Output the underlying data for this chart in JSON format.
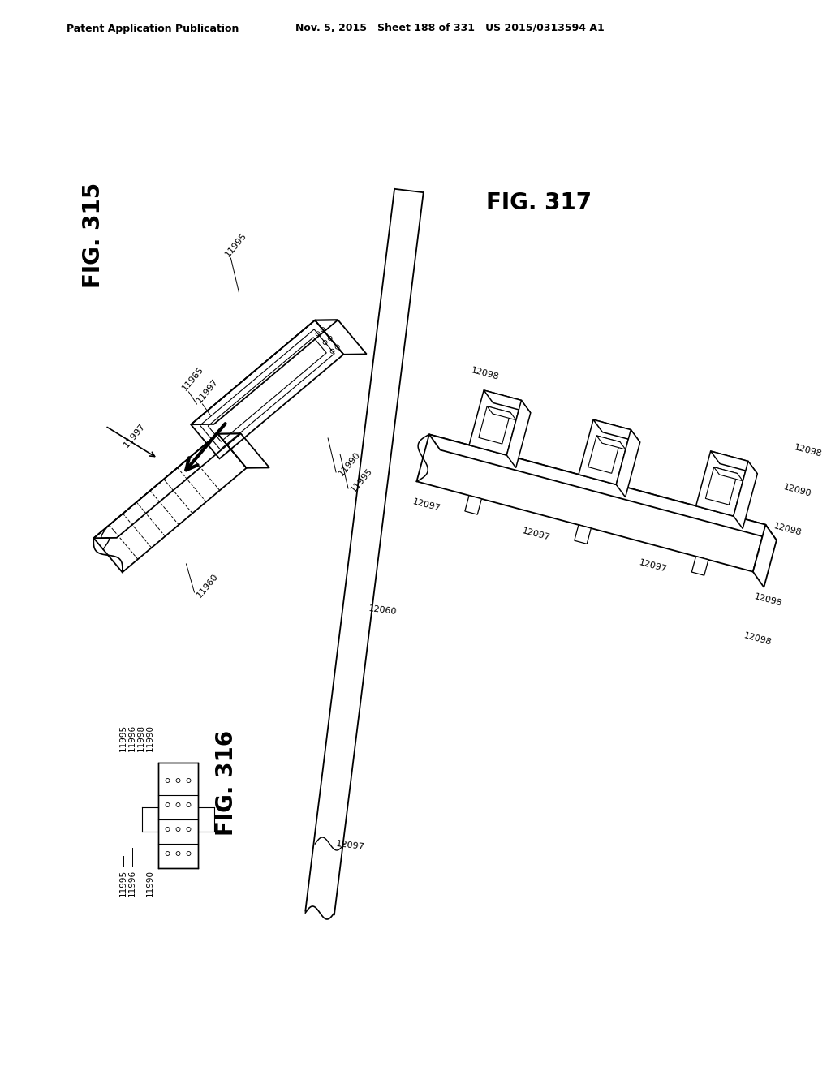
{
  "header_left": "Patent Application Publication",
  "header_middle": "Nov. 5, 2015   Sheet 188 of 331   US 2015/0313594 A1",
  "background_color": "#ffffff",
  "line_color": "#000000",
  "fig316_label": "FIG. 316",
  "fig315_label": "FIG. 315",
  "fig317_label": "FIG. 317"
}
